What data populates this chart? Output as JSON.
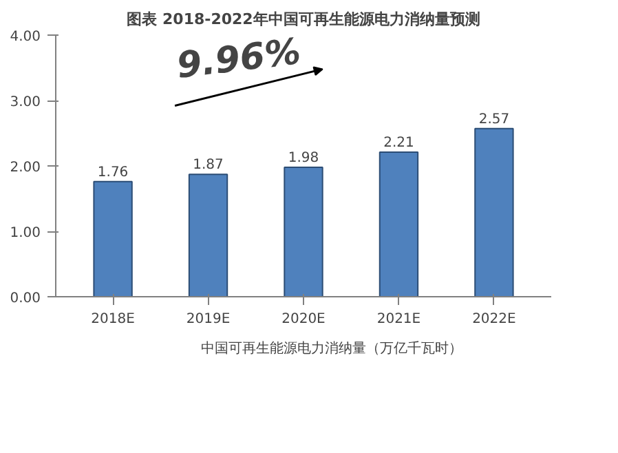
{
  "chart_data": {
    "type": "bar",
    "title": "图表 2018-2022年中国可再生能源电力消纳量预测",
    "categories": [
      "2018E",
      "2019E",
      "2020E",
      "2021E",
      "2022E"
    ],
    "series": [
      {
        "name": "中国可再生能源电力消纳量（万亿千瓦时）",
        "color": "#4f81bd",
        "values": [
          1.76,
          1.87,
          1.98,
          2.21,
          2.57
        ]
      }
    ],
    "ylim": [
      0,
      4
    ],
    "yticks": [
      {
        "value": 0,
        "label": "0.00"
      },
      {
        "value": 1,
        "label": "1.00"
      },
      {
        "value": 2,
        "label": "2.00"
      },
      {
        "value": 3,
        "label": "3.00"
      },
      {
        "value": 4,
        "label": "4.00"
      }
    ],
    "annotations": [
      "9.96%"
    ],
    "data_labels": true,
    "legend": "bottom",
    "grid": false
  }
}
